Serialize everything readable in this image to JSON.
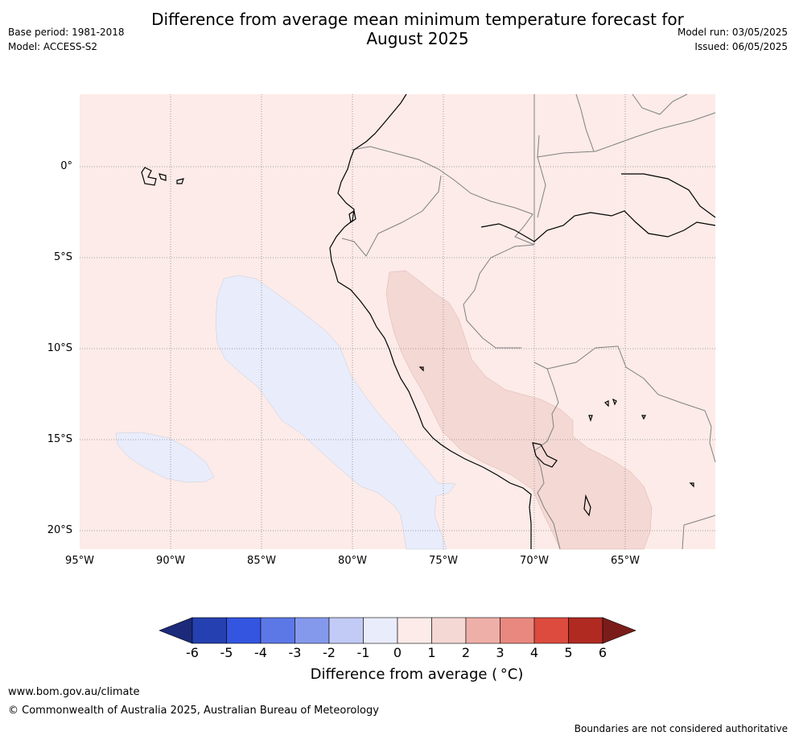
{
  "header": {
    "title_line1": "Difference from average mean minimum temperature forecast for",
    "title_line2": "August 2025",
    "base_period": "Base period: 1981-2018",
    "model": "Model: ACCESS-S2",
    "model_run": "Model run: 03/05/2025",
    "issued": "Issued: 06/05/2025"
  },
  "map": {
    "region": "Western South America (Ecuador, Peru, Bolivia, eastern Pacific)",
    "lat_labels": [
      "0°",
      "5°S",
      "10°S",
      "15°S",
      "20°S"
    ],
    "lon_labels": [
      "95°W",
      "90°W",
      "85°W",
      "80°W",
      "75°W",
      "70°W",
      "65°W"
    ],
    "background_category": "0 to 1",
    "anomaly_regions": [
      {
        "name": "offshore-cool-anomaly",
        "category": "-1 to 0",
        "color": "#e9ecfb"
      },
      {
        "name": "galapagos-south-cool-anomaly",
        "category": "-1 to 0",
        "color": "#e9ecfb"
      },
      {
        "name": "andes-warm-anomaly",
        "category": "1 to 2",
        "color": "#f4d8d4"
      }
    ],
    "colors": {
      "land_sea_base": "#fcebe8",
      "cool_light": "#e9ecfb",
      "warm_light": "#f4d8d4",
      "coastline": "#000000",
      "border": "#808080",
      "gridline": "#888888"
    }
  },
  "colorbar": {
    "title": "Difference from average ( °C)",
    "ticks": [
      "-6",
      "-5",
      "-4",
      "-3",
      "-2",
      "-1",
      "0",
      "1",
      "2",
      "3",
      "4",
      "5",
      "6"
    ],
    "low_extend_color": "#1b2a7a",
    "high_extend_color": "#7a1d1a",
    "bins": [
      "#2540b0",
      "#3355e0",
      "#5c78e6",
      "#8599ec",
      "#c2cbf5",
      "#e9ecfb",
      "#fcebe8",
      "#f4d8d4",
      "#efafa9",
      "#e8887f",
      "#dc4b3e",
      "#b02a22"
    ]
  },
  "footer": {
    "url": "www.bom.gov.au/climate",
    "copyright": "© Commonwealth of Australia 2025, Australian Bureau of Meteorology",
    "disclaimer": "Boundaries are not considered authoritative"
  }
}
